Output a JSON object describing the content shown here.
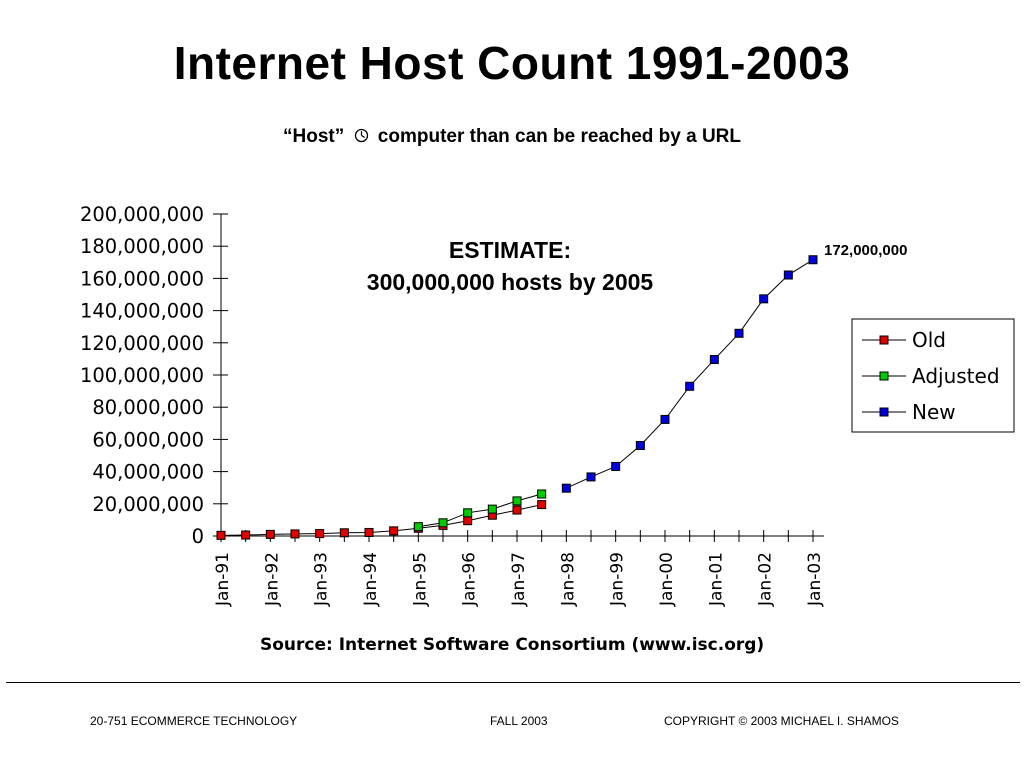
{
  "slide": {
    "title": "Internet Host Count 1991-2003",
    "subtitle_before": "“Host”",
    "subtitle_after": "computer than can be reached by a URL",
    "footer_left": "20-751 ECOMMERCE TECHNOLOGY",
    "footer_mid": "FALL 2003",
    "footer_right": "COPYRIGHT © 2003 MICHAEL I. SHAMOS"
  },
  "annotations": {
    "estimate_line1": "ESTIMATE:",
    "estimate_line2": "300,000,000 hosts by 2005",
    "final_value_label": "172,000,000"
  },
  "chart_data": {
    "type": "line",
    "source": "Source: Internet Software Consortium (www.isc.org)",
    "ylim": [
      0,
      200000000
    ],
    "y_ticks": [
      "0",
      "20,000,000",
      "40,000,000",
      "60,000,000",
      "80,000,000",
      "100,000,000",
      "120,000,000",
      "140,000,000",
      "160,000,000",
      "180,000,000",
      "200,000,000"
    ],
    "x_ticks": [
      "Jan-91",
      "Jan-92",
      "Jan-93",
      "Jan-94",
      "Jan-95",
      "Jan-96",
      "Jan-97",
      "Jan-98",
      "Jan-99",
      "Jan-00",
      "Jan-01",
      "Jan-02",
      "Jan-03"
    ],
    "x_range": [
      1991,
      2003
    ],
    "grid": false,
    "legend_position": "right",
    "series": [
      {
        "name": "Old",
        "color": "#e00000",
        "x": [
          1991.0,
          1991.5,
          1992.0,
          1992.5,
          1993.0,
          1993.5,
          1994.0,
          1994.5,
          1995.0,
          1995.5,
          1996.0,
          1996.5,
          1997.0,
          1997.5
        ],
        "values": [
          400000,
          600000,
          1000000,
          1300000,
          1500000,
          2000000,
          2200000,
          3200000,
          4800000,
          6600000,
          9500000,
          12900000,
          16100000,
          19500000
        ]
      },
      {
        "name": "Adjusted",
        "color": "#00cc00",
        "x": [
          1995.0,
          1995.5,
          1996.0,
          1996.5,
          1997.0,
          1997.5
        ],
        "values": [
          5800000,
          8200000,
          14400000,
          16700000,
          21800000,
          26100000
        ]
      },
      {
        "name": "New",
        "color": "#0000dd",
        "x": [
          1998.0,
          1998.5,
          1999.0,
          1999.5,
          2000.0,
          2000.5,
          2001.0,
          2001.5,
          2002.0,
          2002.5,
          2003.0
        ],
        "values": [
          29700000,
          36700000,
          43200000,
          56200000,
          72400000,
          93000000,
          109600000,
          125900000,
          147300000,
          162100000,
          171600000
        ]
      }
    ]
  }
}
